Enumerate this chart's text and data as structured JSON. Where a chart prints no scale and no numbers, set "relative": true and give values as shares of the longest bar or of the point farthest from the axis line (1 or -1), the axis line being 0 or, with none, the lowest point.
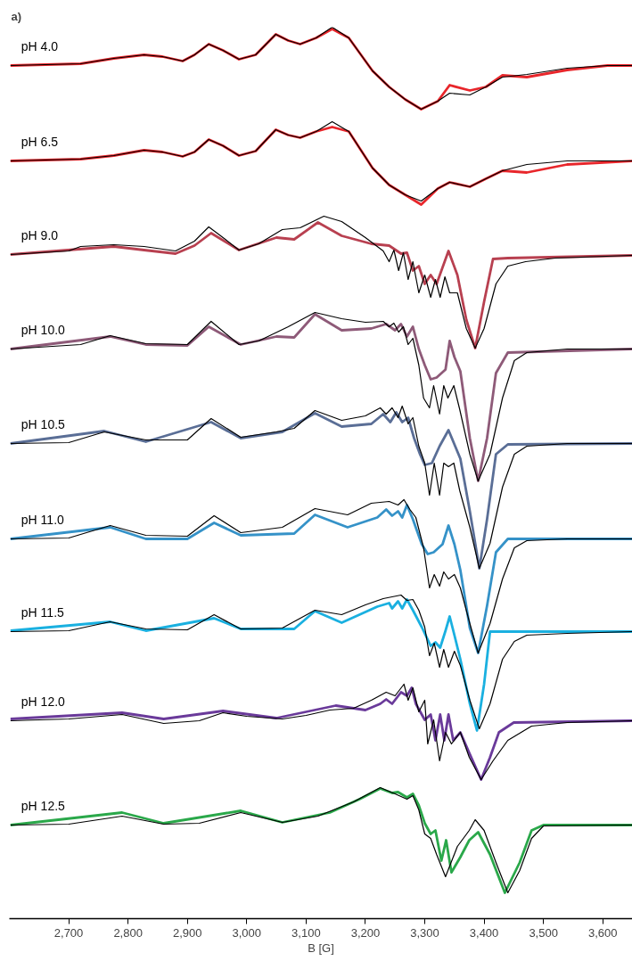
{
  "chart_data": {
    "type": "line",
    "title": "a)",
    "xlabel": "B [G]",
    "relative": true,
    "grid": false,
    "marker": "none",
    "line_style": "solid",
    "xlim": [
      2600,
      3650
    ],
    "xticks": [
      {
        "value": 2700,
        "label": "2,700"
      },
      {
        "value": 2800,
        "label": "2,800"
      },
      {
        "value": 2900,
        "label": "2,900"
      },
      {
        "value": 3000,
        "label": "3,000"
      },
      {
        "value": 3100,
        "label": "3,100"
      },
      {
        "value": 3200,
        "label": "3,200"
      },
      {
        "value": 3300,
        "label": "3,300"
      },
      {
        "value": 3400,
        "label": "3,400"
      },
      {
        "value": 3500,
        "label": "3,500"
      },
      {
        "value": 3600,
        "label": "3,600"
      }
    ],
    "series": [
      {
        "color": "#e8262b",
        "x": [
          2602,
          2720,
          2776,
          2827,
          2858,
          2892,
          2912,
          2936,
          2960,
          2987,
          3015,
          3049,
          3070,
          3090,
          3117,
          3144,
          3172,
          3212,
          3240,
          3267,
          3294,
          3322,
          3342,
          3376,
          3403,
          3431,
          3472,
          3540,
          3608,
          3650
        ],
        "values": [
          0.957,
          0.959,
          0.965,
          0.969,
          0.967,
          0.962,
          0.969,
          0.981,
          0.974,
          0.964,
          0.969,
          0.992,
          0.985,
          0.981,
          0.988,
          0.998,
          0.988,
          0.951,
          0.933,
          0.919,
          0.908,
          0.917,
          0.935,
          0.929,
          0.933,
          0.946,
          0.944,
          0.952,
          0.957,
          0.957
        ]
      },
      {
        "name": "pH 4.0",
        "color": "#000000",
        "x": [
          2602,
          2720,
          2776,
          2827,
          2858,
          2892,
          2912,
          2936,
          2960,
          2987,
          3015,
          3049,
          3070,
          3090,
          3117,
          3144,
          3172,
          3212,
          3240,
          3267,
          3294,
          3322,
          3342,
          3376,
          3403,
          3431,
          3472,
          3540,
          3608,
          3650
        ],
        "values": [
          0.957,
          0.959,
          0.965,
          0.969,
          0.967,
          0.962,
          0.969,
          0.981,
          0.974,
          0.964,
          0.969,
          0.992,
          0.985,
          0.981,
          0.988,
          1.0,
          0.988,
          0.951,
          0.933,
          0.919,
          0.908,
          0.917,
          0.926,
          0.924,
          0.933,
          0.944,
          0.947,
          0.954,
          0.957,
          0.957
        ]
      },
      {
        "color": "#e8262b",
        "x": [
          2602,
          2720,
          2776,
          2827,
          2858,
          2892,
          2912,
          2936,
          2960,
          2987,
          3015,
          3049,
          3070,
          3090,
          3117,
          3144,
          3172,
          3212,
          3240,
          3267,
          3294,
          3322,
          3342,
          3376,
          3403,
          3431,
          3472,
          3540,
          3650
        ],
        "values": [
          0.85,
          0.852,
          0.856,
          0.862,
          0.86,
          0.855,
          0.86,
          0.874,
          0.867,
          0.856,
          0.861,
          0.885,
          0.879,
          0.876,
          0.883,
          0.888,
          0.883,
          0.842,
          0.823,
          0.812,
          0.801,
          0.819,
          0.826,
          0.821,
          0.83,
          0.839,
          0.837,
          0.846,
          0.85
        ]
      },
      {
        "name": "pH 6.5",
        "color": "#000000",
        "x": [
          2602,
          2720,
          2776,
          2827,
          2858,
          2892,
          2912,
          2936,
          2960,
          2987,
          3015,
          3049,
          3070,
          3090,
          3117,
          3144,
          3172,
          3212,
          3240,
          3267,
          3294,
          3322,
          3342,
          3376,
          3403,
          3431,
          3472,
          3540,
          3650
        ],
        "values": [
          0.85,
          0.852,
          0.856,
          0.862,
          0.86,
          0.855,
          0.86,
          0.874,
          0.867,
          0.856,
          0.861,
          0.885,
          0.879,
          0.876,
          0.883,
          0.894,
          0.883,
          0.842,
          0.823,
          0.812,
          0.805,
          0.819,
          0.826,
          0.821,
          0.83,
          0.839,
          0.846,
          0.85,
          0.85
        ]
      },
      {
        "color": "#b84050",
        "x": [
          2602,
          2776,
          2827,
          2880,
          2912,
          2940,
          2987,
          3050,
          3080,
          3120,
          3160,
          3210,
          3240,
          3260,
          3270,
          3280,
          3290,
          3300,
          3310,
          3320,
          3340,
          3355,
          3370,
          3385,
          3400,
          3415,
          3440,
          3650
        ],
        "values": [
          0.745,
          0.754,
          0.75,
          0.746,
          0.755,
          0.769,
          0.75,
          0.764,
          0.762,
          0.781,
          0.766,
          0.757,
          0.755,
          0.746,
          0.747,
          0.727,
          0.732,
          0.712,
          0.722,
          0.712,
          0.749,
          0.722,
          0.672,
          0.64,
          0.692,
          0.74,
          0.741,
          0.744
        ]
      },
      {
        "name": "pH 9.0",
        "color": "#000000",
        "x": [
          2602,
          2700,
          2720,
          2776,
          2827,
          2880,
          2912,
          2936,
          2960,
          2987,
          3020,
          3060,
          3090,
          3130,
          3160,
          3200,
          3230,
          3240,
          3248,
          3256,
          3264,
          3272,
          3280,
          3290,
          3300,
          3310,
          3318,
          3326,
          3334,
          3342,
          3355,
          3370,
          3385,
          3400,
          3420,
          3440,
          3470,
          3520,
          3650
        ],
        "values": [
          0.745,
          0.749,
          0.754,
          0.756,
          0.754,
          0.749,
          0.76,
          0.776,
          0.764,
          0.75,
          0.757,
          0.773,
          0.775,
          0.788,
          0.782,
          0.764,
          0.749,
          0.737,
          0.75,
          0.727,
          0.747,
          0.717,
          0.737,
          0.702,
          0.722,
          0.697,
          0.717,
          0.697,
          0.72,
          0.702,
          0.702,
          0.662,
          0.64,
          0.662,
          0.712,
          0.732,
          0.737,
          0.741,
          0.744
        ]
      },
      {
        "color": "#8e5a78",
        "x": [
          2602,
          2770,
          2830,
          2900,
          2936,
          2990,
          3050,
          3080,
          3115,
          3160,
          3210,
          3235,
          3250,
          3260,
          3270,
          3280,
          3290,
          3300,
          3310,
          3320,
          3335,
          3342,
          3350,
          3360,
          3376,
          3390,
          3405,
          3420,
          3440,
          3650
        ],
        "values": [
          0.639,
          0.653,
          0.644,
          0.643,
          0.664,
          0.644,
          0.653,
          0.652,
          0.678,
          0.66,
          0.662,
          0.667,
          0.66,
          0.667,
          0.653,
          0.664,
          0.639,
          0.621,
          0.605,
          0.607,
          0.616,
          0.648,
          0.63,
          0.614,
          0.539,
          0.491,
          0.539,
          0.612,
          0.635,
          0.639
        ]
      },
      {
        "name": "pH 10.0",
        "color": "#000000",
        "x": [
          2602,
          2720,
          2770,
          2830,
          2900,
          2940,
          2987,
          3020,
          3070,
          3115,
          3160,
          3200,
          3230,
          3240,
          3248,
          3256,
          3264,
          3272,
          3280,
          3290,
          3298,
          3308,
          3315,
          3325,
          3332,
          3339,
          3349,
          3359,
          3376,
          3390,
          3410,
          3431,
          3451,
          3472,
          3540,
          3650
        ],
        "values": [
          0.639,
          0.644,
          0.654,
          0.645,
          0.644,
          0.67,
          0.644,
          0.648,
          0.664,
          0.68,
          0.673,
          0.669,
          0.67,
          0.664,
          0.668,
          0.658,
          0.664,
          0.644,
          0.651,
          0.621,
          0.584,
          0.573,
          0.598,
          0.566,
          0.598,
          0.584,
          0.598,
          0.571,
          0.521,
          0.491,
          0.521,
          0.584,
          0.626,
          0.635,
          0.639,
          0.639
        ]
      },
      {
        "color": "#5a6e96",
        "x": [
          2602,
          2760,
          2830,
          2940,
          2990,
          3060,
          3115,
          3160,
          3210,
          3230,
          3242,
          3252,
          3262,
          3272,
          3282,
          3292,
          3300,
          3312,
          3325,
          3340,
          3350,
          3360,
          3376,
          3392,
          3405,
          3420,
          3440,
          3650
        ],
        "values": [
          0.533,
          0.547,
          0.535,
          0.557,
          0.539,
          0.546,
          0.567,
          0.552,
          0.555,
          0.566,
          0.557,
          0.568,
          0.557,
          0.562,
          0.539,
          0.521,
          0.509,
          0.511,
          0.53,
          0.548,
          0.532,
          0.516,
          0.457,
          0.393,
          0.448,
          0.521,
          0.532,
          0.533
        ]
      },
      {
        "name": "pH 10.5",
        "color": "#000000",
        "x": [
          2602,
          2700,
          2760,
          2830,
          2900,
          2940,
          2990,
          3050,
          3080,
          3115,
          3160,
          3200,
          3225,
          3235,
          3245,
          3255,
          3262,
          3272,
          3280,
          3290,
          3300,
          3308,
          3316,
          3325,
          3332,
          3340,
          3349,
          3359,
          3376,
          3392,
          3410,
          3431,
          3451,
          3472,
          3540,
          3650
        ],
        "values": [
          0.533,
          0.534,
          0.546,
          0.537,
          0.537,
          0.561,
          0.54,
          0.546,
          0.55,
          0.57,
          0.559,
          0.564,
          0.573,
          0.566,
          0.573,
          0.562,
          0.575,
          0.555,
          0.562,
          0.53,
          0.511,
          0.475,
          0.511,
          0.475,
          0.511,
          0.507,
          0.511,
          0.48,
          0.439,
          0.393,
          0.421,
          0.484,
          0.521,
          0.53,
          0.533,
          0.533
        ]
      },
      {
        "color": "#3592c8",
        "x": [
          2602,
          2770,
          2830,
          2900,
          2945,
          2990,
          3080,
          3115,
          3170,
          3220,
          3235,
          3245,
          3255,
          3262,
          3270,
          3280,
          3295,
          3305,
          3315,
          3330,
          3340,
          3350,
          3360,
          3376,
          3390,
          3405,
          3420,
          3440,
          3650
        ],
        "values": [
          0.426,
          0.439,
          0.426,
          0.426,
          0.444,
          0.43,
          0.432,
          0.453,
          0.439,
          0.45,
          0.459,
          0.452,
          0.457,
          0.45,
          0.464,
          0.448,
          0.42,
          0.409,
          0.411,
          0.42,
          0.441,
          0.42,
          0.391,
          0.326,
          0.298,
          0.351,
          0.411,
          0.426,
          0.426
        ]
      },
      {
        "name": "pH 11.0",
        "color": "#000000",
        "x": [
          2602,
          2700,
          2770,
          2830,
          2900,
          2945,
          2990,
          3060,
          3115,
          3170,
          3210,
          3240,
          3255,
          3265,
          3275,
          3285,
          3298,
          3308,
          3316,
          3325,
          3332,
          3340,
          3350,
          3360,
          3376,
          3390,
          3410,
          3431,
          3451,
          3472,
          3540,
          3650
        ],
        "values": [
          0.426,
          0.427,
          0.441,
          0.43,
          0.429,
          0.452,
          0.433,
          0.439,
          0.46,
          0.453,
          0.466,
          0.468,
          0.464,
          0.47,
          0.459,
          0.45,
          0.416,
          0.371,
          0.386,
          0.373,
          0.389,
          0.381,
          0.386,
          0.371,
          0.331,
          0.298,
          0.331,
          0.381,
          0.416,
          0.424,
          0.426,
          0.426
        ]
      },
      {
        "color": "#1ab0e0",
        "x": [
          2602,
          2770,
          2830,
          2945,
          2990,
          3080,
          3115,
          3160,
          3220,
          3240,
          3245,
          3255,
          3262,
          3270,
          3280,
          3295,
          3310,
          3318,
          3326,
          3335,
          3342,
          3350,
          3360,
          3376,
          3388,
          3400,
          3410,
          3650
        ],
        "values": [
          0.323,
          0.333,
          0.323,
          0.337,
          0.325,
          0.325,
          0.345,
          0.332,
          0.35,
          0.354,
          0.348,
          0.356,
          0.348,
          0.358,
          0.346,
          0.327,
          0.306,
          0.31,
          0.304,
          0.323,
          0.339,
          0.318,
          0.291,
          0.241,
          0.211,
          0.263,
          0.322,
          0.322
        ]
      },
      {
        "name": "pH 11.5",
        "color": "#000000",
        "x": [
          2602,
          2700,
          2770,
          2830,
          2900,
          2945,
          2990,
          3060,
          3115,
          3160,
          3200,
          3230,
          3260,
          3270,
          3280,
          3290,
          3300,
          3308,
          3316,
          3325,
          3332,
          3340,
          3350,
          3360,
          3376,
          3392,
          3410,
          3431,
          3451,
          3472,
          3540,
          3650
        ],
        "values": [
          0.322,
          0.323,
          0.333,
          0.325,
          0.324,
          0.341,
          0.325,
          0.326,
          0.346,
          0.341,
          0.352,
          0.359,
          0.363,
          0.357,
          0.358,
          0.346,
          0.327,
          0.295,
          0.309,
          0.282,
          0.302,
          0.282,
          0.3,
          0.284,
          0.245,
          0.213,
          0.241,
          0.291,
          0.311,
          0.318,
          0.32,
          0.322
        ]
      },
      {
        "color": "#6a3a9a",
        "x": [
          2602,
          2790,
          2860,
          2960,
          3050,
          3150,
          3200,
          3225,
          3235,
          3245,
          3260,
          3270,
          3278,
          3285,
          3300,
          3310,
          3318,
          3326,
          3333,
          3340,
          3348,
          3360,
          3375,
          3395,
          3410,
          3425,
          3450,
          3650
        ],
        "values": [
          0.224,
          0.231,
          0.224,
          0.233,
          0.225,
          0.239,
          0.234,
          0.241,
          0.246,
          0.241,
          0.254,
          0.25,
          0.259,
          0.241,
          0.223,
          0.229,
          0.2,
          0.229,
          0.2,
          0.229,
          0.2,
          0.209,
          0.186,
          0.156,
          0.181,
          0.209,
          0.22,
          0.222
        ]
      },
      {
        "name": "pH 12.0",
        "color": "#000000",
        "x": [
          2602,
          2700,
          2790,
          2860,
          2920,
          2960,
          3000,
          3060,
          3100,
          3140,
          3180,
          3210,
          3235,
          3250,
          3265,
          3272,
          3280,
          3290,
          3300,
          3305,
          3315,
          3325,
          3335,
          3345,
          3360,
          3375,
          3395,
          3415,
          3440,
          3480,
          3540,
          3650
        ],
        "values": [
          0.222,
          0.224,
          0.229,
          0.219,
          0.222,
          0.231,
          0.227,
          0.224,
          0.228,
          0.234,
          0.236,
          0.245,
          0.254,
          0.25,
          0.263,
          0.245,
          0.259,
          0.232,
          0.245,
          0.196,
          0.223,
          0.177,
          0.209,
          0.196,
          0.209,
          0.181,
          0.156,
          0.177,
          0.2,
          0.216,
          0.22,
          0.222
        ]
      },
      {
        "color": "#2aa84a",
        "x": [
          2602,
          2790,
          2860,
          2990,
          3060,
          3140,
          3190,
          3225,
          3245,
          3255,
          3270,
          3280,
          3290,
          3300,
          3310,
          3318,
          3328,
          3336,
          3345,
          3360,
          3375,
          3390,
          3410,
          3435,
          3460,
          3480,
          3500,
          3650
        ],
        "values": [
          0.105,
          0.119,
          0.107,
          0.121,
          0.108,
          0.119,
          0.134,
          0.146,
          0.141,
          0.142,
          0.136,
          0.14,
          0.127,
          0.107,
          0.095,
          0.099,
          0.065,
          0.088,
          0.052,
          0.069,
          0.088,
          0.097,
          0.072,
          0.029,
          0.063,
          0.099,
          0.105,
          0.105
        ]
      },
      {
        "name": "pH 12.5",
        "color": "#000000",
        "x": [
          2602,
          2700,
          2790,
          2860,
          2920,
          2990,
          3060,
          3120,
          3180,
          3225,
          3250,
          3270,
          3280,
          3290,
          3300,
          3310,
          3320,
          3335,
          3355,
          3375,
          3385,
          3400,
          3420,
          3440,
          3460,
          3480,
          3500,
          3650
        ],
        "values": [
          0.105,
          0.106,
          0.115,
          0.106,
          0.107,
          0.119,
          0.108,
          0.115,
          0.131,
          0.147,
          0.14,
          0.134,
          0.138,
          0.122,
          0.095,
          0.09,
          0.072,
          0.047,
          0.081,
          0.099,
          0.111,
          0.099,
          0.063,
          0.029,
          0.054,
          0.09,
          0.104,
          0.105
        ]
      }
    ]
  }
}
